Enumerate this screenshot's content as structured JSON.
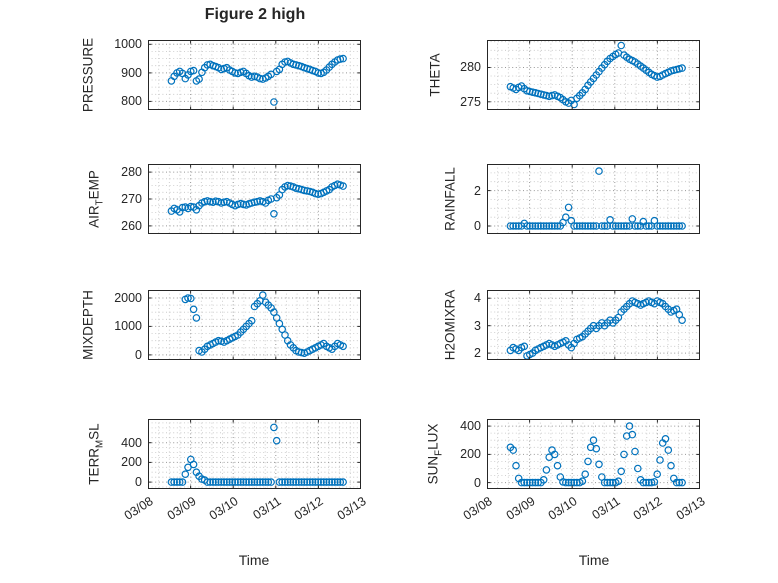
{
  "figure": {
    "title": "Figure 2 high",
    "xlabel": "Time",
    "xtick_labels": [
      "03/08",
      "03/09",
      "03/10",
      "03/11",
      "03/12",
      "03/13"
    ],
    "xticks": [
      0,
      1,
      2,
      3,
      4,
      5
    ],
    "xlim": [
      0,
      5
    ],
    "marker_color": "#0072BD",
    "axis_color": "#262626",
    "grid_color": "#c2c2c2",
    "grid_major_color": "#979797"
  },
  "x_days": [
    0.55,
    0.615,
    0.68,
    0.745,
    0.81,
    0.875,
    0.94,
    1.005,
    1.07,
    1.135,
    1.2,
    1.265,
    1.33,
    1.395,
    1.46,
    1.525,
    1.59,
    1.655,
    1.72,
    1.785,
    1.85,
    1.915,
    1.98,
    2.045,
    2.11,
    2.175,
    2.24,
    2.305,
    2.37,
    2.435,
    2.5,
    2.565,
    2.63,
    2.695,
    2.76,
    2.825,
    2.89,
    2.955,
    3.02,
    3.085,
    3.15,
    3.215,
    3.28,
    3.345,
    3.41,
    3.475,
    3.54,
    3.605,
    3.67,
    3.735,
    3.8,
    3.865,
    3.93,
    3.995,
    4.06,
    4.125,
    4.19,
    4.255,
    4.32,
    4.385,
    4.45,
    4.515,
    4.58
  ],
  "chart_data": [
    {
      "type": "scatter",
      "name": "PRESSURE",
      "ylabel": "PRESSURE",
      "ylabel_parts": [
        {
          "text": "PRESSURE",
          "sub": false
        }
      ],
      "yticks": [
        800,
        900,
        1000
      ],
      "ylim": [
        770,
        1015
      ],
      "y": [
        872,
        888,
        900,
        905,
        898,
        880,
        893,
        905,
        908,
        872,
        878,
        902,
        918,
        928,
        930,
        925,
        922,
        918,
        912,
        915,
        918,
        910,
        905,
        900,
        898,
        902,
        905,
        898,
        890,
        885,
        888,
        885,
        880,
        878,
        882,
        888,
        895,
        798,
        905,
        912,
        930,
        938,
        940,
        935,
        930,
        928,
        925,
        922,
        918,
        915,
        912,
        908,
        905,
        900,
        898,
        902,
        910,
        920,
        930,
        938,
        945,
        948,
        950
      ]
    },
    {
      "type": "scatter",
      "name": "THETA",
      "ylabel": "THETA",
      "ylabel_parts": [
        {
          "text": "THETA",
          "sub": false
        }
      ],
      "yticks": [
        275,
        280
      ],
      "ylim": [
        273.8,
        284
      ],
      "y": [
        277.2,
        277.0,
        276.8,
        277.1,
        277.3,
        276.9,
        276.6,
        276.5,
        276.4,
        276.3,
        276.2,
        276.1,
        276.0,
        275.9,
        275.8,
        275.9,
        276.0,
        275.8,
        275.6,
        275.3,
        275.0,
        274.8,
        275.2,
        274.6,
        275.5,
        275.9,
        276.3,
        276.8,
        277.4,
        277.9,
        278.4,
        278.9,
        279.4,
        279.9,
        280.4,
        280.9,
        281.3,
        281.6,
        281.9,
        282.1,
        283.2,
        281.8,
        281.5,
        281.2,
        281.0,
        280.8,
        280.5,
        280.2,
        279.9,
        279.6,
        279.3,
        279.0,
        278.8,
        278.6,
        278.7,
        278.9,
        279.1,
        279.3,
        279.5,
        279.6,
        279.7,
        279.8,
        279.9
      ]
    },
    {
      "type": "scatter",
      "name": "AIR_TEMP",
      "ylabel": "AIR_TEMP",
      "ylabel_parts": [
        {
          "text": "AIR",
          "sub": false
        },
        {
          "text": "T",
          "sub": true
        },
        {
          "text": "EMP",
          "sub": false
        }
      ],
      "yticks": [
        260,
        270,
        280
      ],
      "ylim": [
        257,
        283
      ],
      "y": [
        265.5,
        266.5,
        266.0,
        265.2,
        266.8,
        267.0,
        266.5,
        267.2,
        267.0,
        266.0,
        267.5,
        268.5,
        269.0,
        269.3,
        269.0,
        268.8,
        269.2,
        269.0,
        268.5,
        268.8,
        269.0,
        268.5,
        268.0,
        267.5,
        268.0,
        268.3,
        268.0,
        267.8,
        268.2,
        268.5,
        268.8,
        269.0,
        269.3,
        269.0,
        268.5,
        269.5,
        270.0,
        264.5,
        270.5,
        271.5,
        273.5,
        274.5,
        275.0,
        274.8,
        274.5,
        274.0,
        273.8,
        273.5,
        273.2,
        273.0,
        272.8,
        272.5,
        272.0,
        271.8,
        272.0,
        272.5,
        273.0,
        273.5,
        274.5,
        275.0,
        275.5,
        275.2,
        274.8
      ]
    },
    {
      "type": "scatter",
      "name": "RAINFALL",
      "ylabel": "RAINFALL",
      "ylabel_parts": [
        {
          "text": "RAINFALL",
          "sub": false
        }
      ],
      "yticks": [
        0,
        2
      ],
      "ylim": [
        -0.45,
        3.5
      ],
      "y": [
        0,
        0,
        0,
        0,
        0,
        0.15,
        0,
        0,
        0,
        0,
        0,
        0,
        0,
        0,
        0,
        0,
        0,
        0,
        0,
        0.2,
        0.5,
        1.05,
        0.3,
        0,
        0,
        0,
        0,
        0,
        0,
        0,
        0,
        0,
        3.1,
        0,
        0,
        0,
        0.35,
        0,
        0,
        0,
        0,
        0,
        0,
        0,
        0.4,
        0,
        0,
        0,
        0.25,
        0,
        0,
        0,
        0.3,
        0,
        0,
        0,
        0,
        0,
        0,
        0,
        0,
        0,
        0
      ]
    },
    {
      "type": "scatter",
      "name": "MIXDEPTH",
      "ylabel": "MIXDEPTH",
      "ylabel_parts": [
        {
          "text": "MIXDEPTH",
          "sub": false
        }
      ],
      "yticks": [
        0,
        1000,
        2000
      ],
      "ylim": [
        -180,
        2280
      ],
      "y": [
        null,
        null,
        null,
        null,
        null,
        1950,
        2000,
        1980,
        1600,
        1300,
        150,
        100,
        200,
        300,
        350,
        400,
        450,
        500,
        480,
        450,
        500,
        550,
        600,
        650,
        700,
        800,
        900,
        1000,
        1100,
        1200,
        1700,
        1800,
        1900,
        2100,
        1850,
        1750,
        1650,
        1500,
        1300,
        1100,
        900,
        700,
        500,
        350,
        250,
        150,
        100,
        80,
        60,
        100,
        150,
        200,
        250,
        300,
        350,
        400,
        300,
        250,
        200,
        300,
        400,
        350,
        300
      ]
    },
    {
      "type": "scatter",
      "name": "H2OMIXRA",
      "ylabel": "H2OMIXRA",
      "ylabel_parts": [
        {
          "text": "H2OMIXRA",
          "sub": false
        }
      ],
      "yticks": [
        2,
        3,
        4
      ],
      "ylim": [
        1.75,
        4.3
      ],
      "y": [
        2.1,
        2.2,
        2.15,
        2.1,
        2.2,
        2.25,
        1.9,
        1.95,
        2.0,
        2.1,
        2.15,
        2.2,
        2.25,
        2.3,
        2.35,
        2.3,
        2.25,
        2.3,
        2.35,
        2.4,
        2.45,
        2.3,
        2.2,
        2.35,
        2.5,
        2.55,
        2.6,
        2.7,
        2.8,
        2.9,
        3.0,
        2.9,
        3.0,
        3.1,
        3.0,
        3.1,
        3.2,
        3.1,
        3.2,
        3.3,
        3.5,
        3.6,
        3.7,
        3.8,
        3.9,
        3.85,
        3.8,
        3.75,
        3.8,
        3.85,
        3.9,
        3.85,
        3.8,
        3.9,
        3.85,
        3.8,
        3.7,
        3.6,
        3.5,
        3.55,
        3.6,
        3.4,
        3.2
      ]
    },
    {
      "type": "scatter",
      "name": "TERR_MSL",
      "ylabel": "TERR_MSL",
      "ylabel_parts": [
        {
          "text": "TERR",
          "sub": false
        },
        {
          "text": "M",
          "sub": true
        },
        {
          "text": "SL",
          "sub": false
        }
      ],
      "yticks": [
        0,
        200,
        400
      ],
      "ylim": [
        -70,
        640
      ],
      "y": [
        0,
        0,
        0,
        0,
        0,
        80,
        150,
        230,
        180,
        100,
        60,
        30,
        20,
        0,
        0,
        0,
        0,
        0,
        0,
        0,
        0,
        0,
        0,
        0,
        0,
        0,
        0,
        0,
        0,
        0,
        0,
        0,
        0,
        0,
        0,
        0,
        0,
        555,
        420,
        0,
        0,
        0,
        0,
        0,
        0,
        0,
        0,
        0,
        0,
        0,
        0,
        0,
        0,
        0,
        0,
        0,
        0,
        0,
        0,
        0,
        0,
        0,
        0
      ]
    },
    {
      "type": "scatter",
      "name": "SUN_FLUX",
      "ylabel": "SUN_FLUX",
      "ylabel_parts": [
        {
          "text": "SUN",
          "sub": false
        },
        {
          "text": "F",
          "sub": true
        },
        {
          "text": "LUX",
          "sub": false
        }
      ],
      "yticks": [
        0,
        200,
        400
      ],
      "ylim": [
        -45,
        450
      ],
      "y": [
        250,
        230,
        120,
        30,
        0,
        0,
        0,
        0,
        0,
        0,
        0,
        0,
        20,
        90,
        180,
        230,
        200,
        120,
        40,
        5,
        0,
        0,
        0,
        0,
        0,
        0,
        10,
        60,
        150,
        250,
        300,
        240,
        130,
        40,
        0,
        0,
        0,
        0,
        0,
        10,
        80,
        200,
        330,
        400,
        340,
        220,
        100,
        20,
        0,
        0,
        0,
        0,
        5,
        60,
        160,
        280,
        310,
        230,
        120,
        30,
        0,
        0,
        0
      ]
    }
  ]
}
